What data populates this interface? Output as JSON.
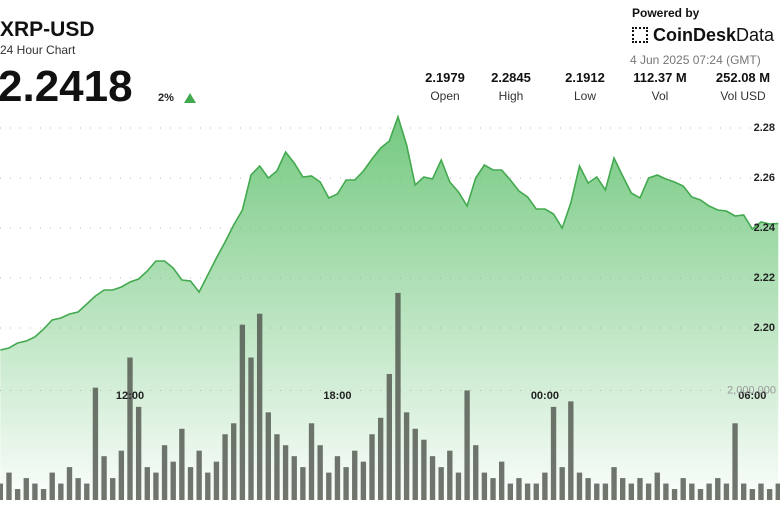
{
  "header": {
    "symbol": "XRP-USD",
    "subtitle": "24 Hour Chart",
    "price": "2.2418",
    "change": "2%",
    "powered_by": "Powered by",
    "brand": "CoinDesk",
    "brand_suffix": "Data",
    "timestamp": "4 Jun 2025 07:24 (GMT)",
    "stats": [
      {
        "value": "2.1979",
        "label": "Open"
      },
      {
        "value": "2.2845",
        "label": "High"
      },
      {
        "value": "2.1912",
        "label": "Low"
      },
      {
        "value": "112.37 M",
        "label": "Vol"
      },
      {
        "value": "252.08 M",
        "label": "Vol USD"
      }
    ]
  },
  "chart_data": {
    "type": "area",
    "x": [
      8.25,
      8.5,
      8.75,
      9,
      9.25,
      9.5,
      9.75,
      10,
      10.25,
      10.5,
      10.75,
      11,
      11.25,
      11.5,
      11.75,
      12,
      12.25,
      12.5,
      12.75,
      13,
      13.25,
      13.5,
      13.75,
      14,
      14.25,
      14.5,
      14.75,
      15,
      15.25,
      15.5,
      15.75,
      16,
      16.25,
      16.5,
      16.75,
      17,
      17.25,
      17.5,
      17.75,
      18,
      18.25,
      18.5,
      18.75,
      19,
      19.25,
      19.5,
      19.75,
      20,
      20.25,
      20.5,
      20.75,
      21,
      21.25,
      21.5,
      21.75,
      22,
      22.25,
      22.5,
      22.75,
      23,
      23.25,
      23.5,
      23.75,
      24,
      24.25,
      24.5,
      24.75,
      25,
      25.25,
      25.5,
      25.75,
      26,
      26.25,
      26.5,
      26.75,
      27,
      27.25,
      27.5,
      27.75,
      28,
      28.25,
      28.5,
      28.75,
      29,
      29.25,
      29.5,
      29.75,
      30,
      30.25,
      30.5,
      30.75
    ],
    "series": [
      {
        "type": "area",
        "color": "#43a94f",
        "values": [
          2.1912,
          2.192,
          2.194,
          2.1948,
          2.1964,
          2.1996,
          2.2032,
          2.204,
          2.2056,
          2.2064,
          2.2096,
          2.2128,
          2.2152,
          2.2152,
          2.2164,
          2.2184,
          2.2196,
          2.2228,
          2.2268,
          2.2268,
          2.224,
          2.2192,
          2.2188,
          2.2144,
          2.2212,
          2.228,
          2.2344,
          2.2412,
          2.2472,
          2.2612,
          2.2648,
          2.26,
          2.2628,
          2.2704,
          2.266,
          2.2604,
          2.2608,
          2.2584,
          2.252,
          2.2536,
          2.2592,
          2.2592,
          2.2628,
          2.2676,
          2.272,
          2.2748,
          2.2845,
          2.2732,
          2.2572,
          2.2604,
          2.2596,
          2.2672,
          2.2584,
          2.2544,
          2.2488,
          2.26,
          2.2652,
          2.2632,
          2.2632,
          2.2592,
          2.2548,
          2.2524,
          2.2476,
          2.2476,
          2.2456,
          2.24,
          2.25,
          2.2648,
          2.258,
          2.2604,
          2.2552,
          2.268,
          2.2608,
          2.254,
          2.252,
          2.26,
          2.2612,
          2.2596,
          2.2584,
          2.2568,
          2.2524,
          2.2512,
          2.2488,
          2.2472,
          2.2468,
          2.2448,
          2.2452,
          2.2396,
          2.2424,
          2.2416,
          2.2418
        ]
      },
      {
        "type": "bar",
        "axis": "y2",
        "color": "#4d524b",
        "values": [
          300000,
          500000,
          200000,
          400000,
          300000,
          200000,
          500000,
          300000,
          600000,
          400000,
          300000,
          2050000,
          800000,
          400000,
          900000,
          2600000,
          1700000,
          600000,
          500000,
          1000000,
          700000,
          1300000,
          600000,
          900000,
          500000,
          700000,
          1200000,
          1400000,
          3200000,
          2600000,
          3400000,
          1600000,
          1200000,
          1000000,
          800000,
          600000,
          1400000,
          1000000,
          500000,
          800000,
          600000,
          900000,
          700000,
          1200000,
          1500000,
          2300000,
          3780000,
          1600000,
          1300000,
          1100000,
          800000,
          600000,
          900000,
          500000,
          2000000,
          1000000,
          500000,
          400000,
          700000,
          300000,
          400000,
          300000,
          300000,
          500000,
          1700000,
          600000,
          1800000,
          500000,
          400000,
          300000,
          300000,
          600000,
          400000,
          300000,
          400000,
          300000,
          500000,
          300000,
          200000,
          400000,
          300000,
          200000,
          300000,
          400000,
          300000,
          1400000,
          300000,
          200000,
          300000,
          200000,
          300000
        ]
      }
    ],
    "xlim": [
      8.24,
      30.8
    ],
    "xticks": [
      {
        "value": 12,
        "label": "12:00"
      },
      {
        "value": 18,
        "label": "18:00"
      },
      {
        "value": 24,
        "label": "00:00"
      },
      {
        "value": 30,
        "label": "06:00"
      }
    ],
    "ylim": [
      2.13,
      2.29
    ],
    "yticks": [
      {
        "value": 2.2,
        "label": "2.20"
      },
      2.22,
      2.24,
      2.26,
      2.28
    ],
    "y2lim": [
      0,
      7300000
    ],
    "y2ticks": [
      {
        "value": 2000000,
        "label": "2,000,000"
      }
    ],
    "grid": true
  }
}
